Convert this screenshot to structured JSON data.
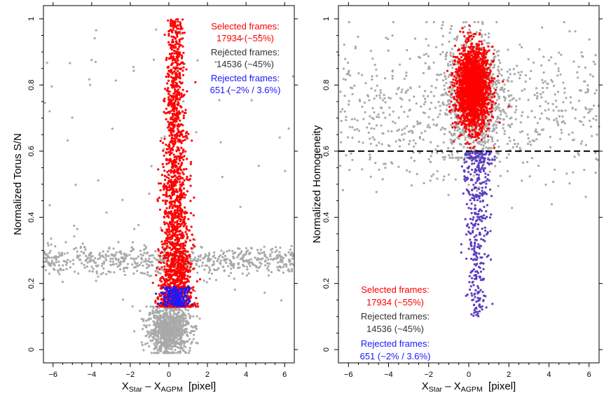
{
  "chart_data": [
    {
      "type": "scatter",
      "panel": "left",
      "xlabel": {
        "main1": "X",
        "sub1": "Star",
        "dash": " – ",
        "main2": "X",
        "sub2": "AGPM",
        "unit": "  [pixel]"
      },
      "ylabel": "Normalized Torus S/N",
      "xlim": [
        -6.5,
        6.5
      ],
      "ylim": [
        -0.04,
        1.04
      ],
      "x_ticks": [
        -6,
        -4,
        -2,
        0,
        2,
        4,
        6
      ],
      "x_tick_labels": [
        "−6",
        "−4",
        "−2",
        "0",
        "2",
        "4",
        "6"
      ],
      "y_ticks": [
        0,
        0.2,
        0.4,
        0.6,
        0.8,
        1
      ],
      "y_tick_labels": [
        "0",
        "0.2",
        "0.4",
        "0.6",
        "0.8",
        "1"
      ],
      "threshold_line": null,
      "legend_position": "top-right",
      "legend": [
        {
          "label": "Selected frames:",
          "value": "17934 (~55%)",
          "color": "#ff0000"
        },
        {
          "label": "Rejected frames:",
          "value": "14536 (~45%)",
          "color": "#333333"
        },
        {
          "label": "Rejected frames:",
          "value": "651 (~2% / 3.6%)",
          "color": "#1a1aff"
        }
      ],
      "series": [
        {
          "legend_index": 1,
          "color": "#a9a9a9",
          "values": "rejected frames, gray",
          "distribution": [
            {
              "x_center": 0.0,
              "x_spread": 0.55,
              "y_range": [
                0.0,
                0.13
              ],
              "description": "dense core below threshold"
            },
            {
              "x_range": [
                -6.5,
                6.5
              ],
              "y_center": 0.27,
              "y_spread": 0.025,
              "description": "horizontal band"
            },
            {
              "x_range": [
                -6.5,
                6.5
              ],
              "y_range": [
                0.13,
                1.0
              ],
              "description": "sparse scatter"
            }
          ]
        },
        {
          "legend_index": 0,
          "color": "#ff0000",
          "values": "selected frames, red",
          "distribution": [
            {
              "x_center": 0.35,
              "x_spread": 0.55,
              "y_range": [
                0.13,
                1.0
              ],
              "description": "vertical plume, densest near 0.15–0.35"
            }
          ]
        },
        {
          "legend_index": 2,
          "color": "#1a1aff",
          "values": "rejected frames, blue",
          "distribution": [
            {
              "x_center": 0.35,
              "x_spread": 0.4,
              "y_range": [
                0.13,
                0.2
              ],
              "description": "cluster just above threshold"
            }
          ]
        }
      ]
    },
    {
      "type": "scatter",
      "panel": "right",
      "xlabel": {
        "main1": "X",
        "sub1": "Star",
        "dash": " – ",
        "main2": "X",
        "sub2": "AGPM",
        "unit": "  [pixel]"
      },
      "ylabel": "Normalized Homogeneity",
      "xlim": [
        -6.5,
        6.5
      ],
      "ylim": [
        -0.04,
        1.04
      ],
      "x_ticks": [
        -6,
        -4,
        -2,
        0,
        2,
        4,
        6
      ],
      "x_tick_labels": [
        "−6",
        "−4",
        "−2",
        "0",
        "2",
        "4",
        "6"
      ],
      "y_ticks": [
        0,
        0.2,
        0.4,
        0.6,
        0.8,
        1
      ],
      "y_tick_labels": [
        "0",
        "0.2",
        "0.4",
        "0.6",
        "0.8",
        "1"
      ],
      "threshold_line": {
        "y": 0.6,
        "style": "dashed",
        "color": "#000000"
      },
      "legend_position": "bottom-left",
      "legend": [
        {
          "label": "Selected frames:",
          "value": "17934 (~55%)",
          "color": "#ff0000"
        },
        {
          "label": "Rejected frames:",
          "value": "14536 (~45%)",
          "color": "#333333"
        },
        {
          "label": "Rejected frames:",
          "value": "651 (~2% / 3.6%)",
          "color": "#1a1aff"
        }
      ],
      "series": [
        {
          "legend_index": 1,
          "color": "#a9a9a9",
          "values": "rejected frames, gray",
          "distribution": [
            {
              "x_center": 0.2,
              "x_spread": 0.75,
              "y_center": 0.76,
              "y_spread": 0.1,
              "description": "halo around red blob"
            },
            {
              "x_range": [
                -6.5,
                6.5
              ],
              "y_center": 0.72,
              "y_spread": 0.12,
              "description": "broad scatter"
            }
          ]
        },
        {
          "legend_index": 0,
          "color": "#ff0000",
          "values": "selected frames, red",
          "distribution": [
            {
              "x_center": 0.2,
              "x_spread": 0.42,
              "y_center": 0.79,
              "y_spread": 0.06,
              "description": "dense blob"
            }
          ]
        },
        {
          "legend_index": 2,
          "color": "#5b3fc0",
          "values": "rejected frames, blue/purple",
          "distribution": [
            {
              "x_center": 0.45,
              "x_spread": 0.3,
              "y_range": [
                0.1,
                0.6
              ],
              "description": "tail below threshold"
            }
          ]
        }
      ]
    }
  ]
}
